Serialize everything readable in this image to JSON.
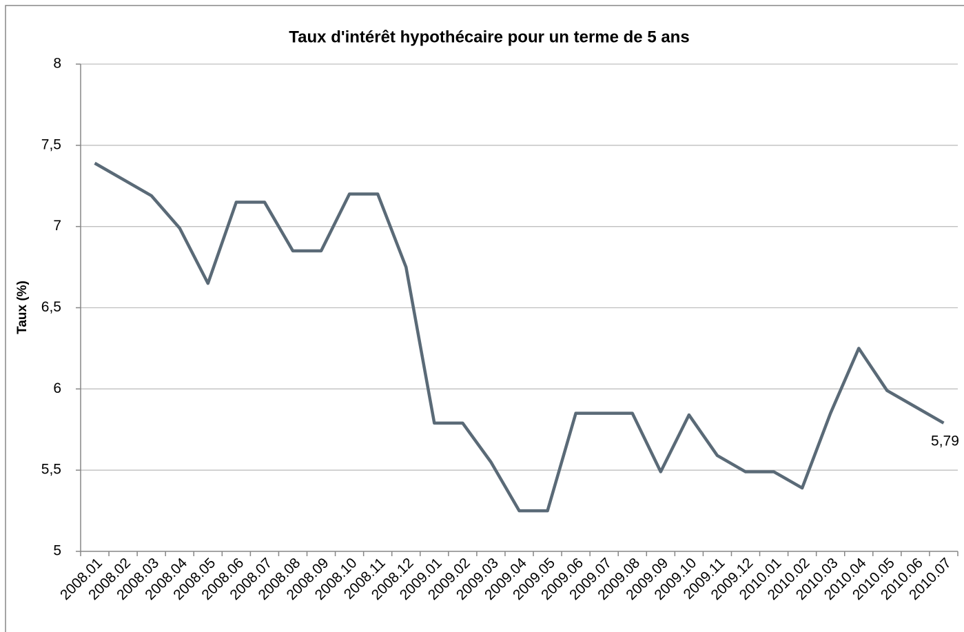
{
  "chart_data": {
    "type": "line",
    "title": "Taux d'intérêt hypothécaire pour un terme de 5 ans",
    "ylabel": "Taux (%)",
    "categories": [
      "2008.01",
      "2008.02",
      "2008.03",
      "2008.04",
      "2008.05",
      "2008.06",
      "2008.07",
      "2008.08",
      "2008.09",
      "2008.10",
      "2008.11",
      "2008.12",
      "2009.01",
      "2009.02",
      "2009.03",
      "2009.04",
      "2009.05",
      "2009.06",
      "2009.07",
      "2009.08",
      "2009.09",
      "2009.10",
      "2009.11",
      "2009.12",
      "2010.01",
      "2010.02",
      "2010.03",
      "2010.04",
      "2010.05",
      "2010.06",
      "2010.07"
    ],
    "values": [
      7.39,
      7.29,
      7.19,
      6.99,
      6.65,
      7.15,
      7.15,
      6.85,
      6.85,
      7.2,
      7.2,
      6.75,
      5.79,
      5.79,
      5.55,
      5.25,
      5.25,
      5.85,
      5.85,
      5.85,
      5.49,
      5.84,
      5.59,
      5.49,
      5.49,
      5.39,
      5.85,
      6.25,
      5.99,
      5.89,
      5.79
    ],
    "value_labels": [
      null,
      null,
      null,
      null,
      null,
      null,
      null,
      null,
      null,
      null,
      null,
      null,
      null,
      null,
      null,
      null,
      null,
      null,
      null,
      null,
      null,
      null,
      null,
      null,
      null,
      null,
      null,
      null,
      null,
      null,
      "5,79"
    ],
    "color": "#5a6a77",
    "ylim": [
      5,
      8
    ],
    "yticks": [
      5,
      {
        "value": 5.5,
        "label": "5,5"
      },
      6,
      {
        "value": 6.5,
        "label": "6,5"
      },
      7,
      {
        "value": 7.5,
        "label": "7,5"
      },
      8
    ],
    "grid": true
  }
}
